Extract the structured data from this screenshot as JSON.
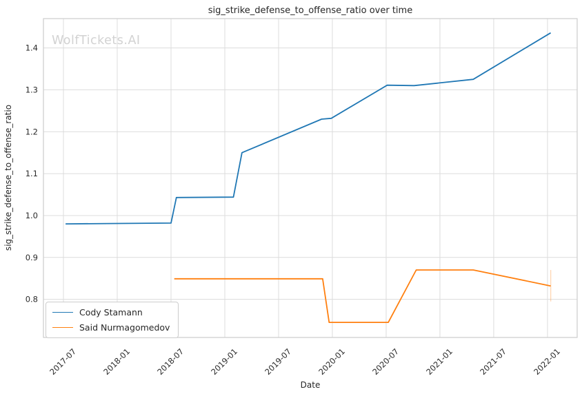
{
  "watermark": {
    "text": "WolfTickets.AI",
    "color": "#d2d2d2"
  },
  "chart_data": {
    "type": "line",
    "title": "sig_strike_defense_to_offense_ratio over time",
    "xlabel": "Date",
    "ylabel": "sig_strike_defense_to_offense_ratio",
    "grid": true,
    "legend_position": "lower left",
    "x_tick_rotation": 45,
    "xlim": [
      2017.314,
      2022.276
    ],
    "ylim": [
      0.709,
      1.47
    ],
    "x_ticks": [
      {
        "label": "2017-07",
        "x": 2017.5
      },
      {
        "label": "2018-01",
        "x": 2018.0
      },
      {
        "label": "2018-07",
        "x": 2018.5
      },
      {
        "label": "2019-01",
        "x": 2019.0
      },
      {
        "label": "2019-07",
        "x": 2019.5
      },
      {
        "label": "2020-01",
        "x": 2020.0
      },
      {
        "label": "2020-07",
        "x": 2020.5
      },
      {
        "label": "2021-01",
        "x": 2021.0
      },
      {
        "label": "2021-07",
        "x": 2021.5
      },
      {
        "label": "2022-01",
        "x": 2022.0
      }
    ],
    "y_ticks": [
      {
        "label": "0.8",
        "value": 0.8
      },
      {
        "label": "0.9",
        "value": 0.9
      },
      {
        "label": "1.0",
        "value": 1.0
      },
      {
        "label": "1.1",
        "value": 1.1
      },
      {
        "label": "1.2",
        "value": 1.2
      },
      {
        "label": "1.3",
        "value": 1.3
      },
      {
        "label": "1.4",
        "value": 1.4
      }
    ],
    "series": [
      {
        "name": "Cody Stamann",
        "color": "#1f77b4",
        "points": [
          [
            2017.52,
            0.98
          ],
          [
            2018.0,
            0.981
          ],
          [
            2018.5,
            0.982
          ],
          [
            2018.55,
            1.043
          ],
          [
            2019.08,
            1.044
          ],
          [
            2019.16,
            1.15
          ],
          [
            2019.9,
            1.23
          ],
          [
            2019.99,
            1.232
          ],
          [
            2020.51,
            1.311
          ],
          [
            2020.76,
            1.31
          ],
          [
            2021.31,
            1.325
          ],
          [
            2022.03,
            1.436
          ]
        ]
      },
      {
        "name": "Said Nurmagomedov",
        "color": "#ff7f0e",
        "points": [
          [
            2018.53,
            0.849
          ],
          [
            2019.91,
            0.849
          ],
          [
            2019.97,
            0.745
          ],
          [
            2020.52,
            0.745
          ],
          [
            2020.78,
            0.87
          ],
          [
            2021.31,
            0.87
          ],
          [
            2022.03,
            0.832
          ]
        ],
        "end_bar": {
          "x": 2022.03,
          "y0": 0.795,
          "y1": 0.87,
          "opacity": 0.3
        }
      }
    ]
  }
}
